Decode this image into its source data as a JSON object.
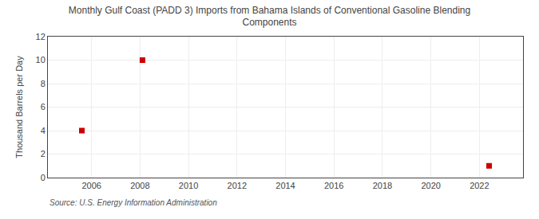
{
  "chart_data": {
    "type": "scatter",
    "title": "Monthly Gulf Coast (PADD 3) Imports from Bahama Islands of Conventional Gasoline Blending\nComponents",
    "ylabel": "Thousand Barrels per Day",
    "source": "Source: U.S. Energy Information Administration",
    "x": [
      2005.6,
      2008.1,
      2022.4
    ],
    "values": [
      4.0,
      10.0,
      1.0
    ],
    "color": "#cc0000",
    "marker": "square",
    "xlim": [
      2004.2,
      2023.8
    ],
    "ylim": [
      0,
      12
    ],
    "xticks": [
      2006,
      2008,
      2010,
      2012,
      2014,
      2016,
      2018,
      2020,
      2022
    ],
    "yticks": [
      0,
      2,
      4,
      6,
      8,
      10,
      12
    ],
    "grid": true
  }
}
